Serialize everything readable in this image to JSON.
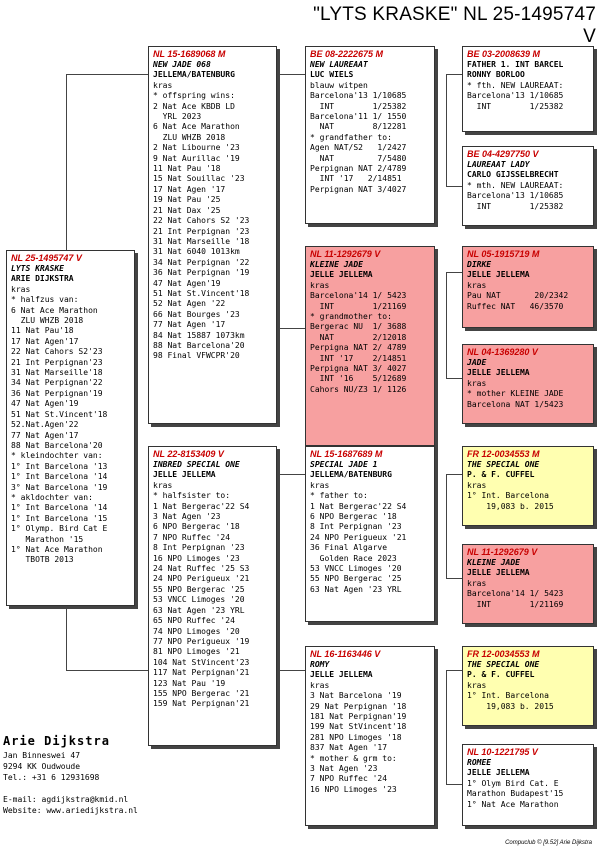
{
  "title": "\"LYTS KRASKE\"  NL  25-1495747 V",
  "owner": {
    "name": "Arie Dijkstra",
    "lines": [
      "Jan Binneswei 47",
      "9294 KK  Oudwoude",
      "Tel.: +31 6 12931698",
      "",
      "E-mail: agdijkstra@kmid.nl",
      "Website: www.ariedijkstra.nl"
    ]
  },
  "footer": "Compuclub © [9.52]  Arie Dijkstra",
  "cards": {
    "subject": {
      "header": "NL  25-1495747 V",
      "name": "LYTS KRASKE",
      "owner": "ARIE DIJKSTRA",
      "lines": [
        "kras",
        "* halfzus van:",
        "6 Nat Ace Marathon",
        "  ZLU WHZB 2018",
        "11 Nat Pau'18",
        "17 Nat Agen'17",
        "22 Nat Cahors S2'23",
        "21 Int Perpignan'23",
        "31 Nat Marseille'18",
        "34 Nat Perpignan'22",
        "36 Nat Perpignan'19",
        "47 Nat Agen'19",
        "51 Nat St.Vincent'18",
        "52.Nat.Agen'22",
        "77 Nat Agen'17",
        "88 Nat Barcelona'20",
        "* kleindochter van:",
        "1° Int Barcelona '13",
        "1° Int Barcelona '14",
        "3° Nat Barcelona '19",
        "* akldochter van:",
        "1° Int Barcelona '14",
        "1° Int Barcelona '15",
        "1° Olymp. Bird Cat E",
        "   Marathon '15",
        "1° Nat Ace Marathon",
        "   TBOTB 2013"
      ]
    },
    "father": {
      "header": "NL  15-1689068 M",
      "name": "NEW JADE 068",
      "owner": "JELLEMA/BATENBURG",
      "lines": [
        "kras",
        "* offspring wins:",
        "2 Nat Ace KBDB LD",
        "  YRL 2023",
        "6 Nat Ace Marathon",
        "  ZLU WHZB 2018",
        "2 Nat Libourne '23",
        "9 Nat Aurillac '19",
        "11 Nat Pau '18",
        "15 Nat Souillac '23",
        "17 Nat Agen '17",
        "19 Nat Pau '25",
        "21 Nat Dax '25",
        "22 Nat Cahors S2 '23",
        "21 Int Perpignan '23",
        "31 Nat Marseille '18",
        "31 Nat 6040 1013km",
        "34 Nat Perpignan '22",
        "36 Nat Perpignan '19",
        "47 Nat Agen'19",
        "51 Nat St.Vincent'18",
        "52 Nat Agen '22",
        "66 Nat Bourges '23",
        "77 Nat Agen '17",
        "84 Nat 15887 1073km",
        "88 Nat Barcelona'20",
        "98 Final VFWCPR'20"
      ]
    },
    "mother": {
      "header": "NL  22-8153409 V",
      "name": "INBRED SPECIAL ONE",
      "owner": "JELLE JELLEMA",
      "lines": [
        "kras",
        "* halfsister to:",
        "1 Nat Bergerac'22 S4",
        "3 Nat Agen '23",
        "6 NPO Bergerac '18",
        "7 NPO Ruffec '24",
        "8 Int Perpignan '23",
        "16 NPO Limoges '23",
        "24 Nat Ruffec '25 S3",
        "24 NPO Perigueux '21",
        "55 NPO Bergerac '25",
        "53 VNCC Limoges '20",
        "63 Nat Agen '23 YRL",
        "65 NPO Ruffec '24",
        "74 NPO Limoges '20",
        "77 NPO Perigueux '19",
        "81 NPO Limoges '21",
        "104 Nat StVincent'23",
        "117 Nat Perpignan'21",
        "123 Nat Pau '19",
        "155 NPO Bergerac '21",
        "159 Nat Perpignan'21"
      ]
    },
    "ff": {
      "header": "BE  08-2222675 M",
      "name": "NEW LAUREAAT",
      "owner": "LUC WIELS",
      "lines": [
        "blauw witpen",
        "Barcelona'13 1/10685",
        "  INT        1/25382",
        "Barcelona'11 1/ 1550",
        "  NAT        8/12281",
        "* grandfather to:",
        "Agen NAT/S2   1/2427",
        "  NAT         7/5480",
        "Perpignan NAT 2/4789",
        "  INT '17   2/14851",
        "Perpignan NAT 3/4027"
      ]
    },
    "fm": {
      "header": "NL  11-1292679 V",
      "name": "KLEINE JADE",
      "owner": "JELLE JELLEMA",
      "lines": [
        "kras",
        "Barcelona'14 1/ 5423",
        "  INT        1/21169",
        "* grandmother to:",
        "Bergerac NU  1/ 3688",
        "  NAT        2/12018",
        "Perpigna NAT 2/ 4789",
        "  INT '17    2/14851",
        "Perpigna NAT 3/ 4027",
        "  INT '16    5/12689",
        "Cahors NU/Z3 1/ 1126"
      ]
    },
    "mf": {
      "header": "NL  15-1687689 M",
      "name": "SPECIAL JADE 1",
      "owner": "JELLEMA/BATENBURG",
      "lines": [
        "kras",
        "* father to:",
        "1 Nat Bergerac'22 S4",
        "6 NPO Bergerac '18",
        "8 Int Perpignan '23",
        "24 NPO Perigueux '21",
        "36 Final Algarve",
        "  Golden Race 2023",
        "53 VNCC Limoges '20",
        "55 NPO Bergerac '25",
        "63 Nat Agen '23 YRL"
      ]
    },
    "mm": {
      "header": "NL  16-1163446 V",
      "name": "ROMY",
      "owner": "JELLE JELLEMA",
      "lines": [
        "kras",
        "3 Nat Barcelona '19",
        "29 Nat Perpignan '18",
        "181 Nat Perpignan'19",
        "199 Nat StVincent'18",
        "281 NPO Limoges '18",
        "837 Nat Agen '17",
        "* mother & grm to:",
        "3 Nat Agen '23",
        "7 NPO Ruffec '24",
        "16 NPO Limoges '23"
      ]
    },
    "fff": {
      "header": "BE  03-2008639 M",
      "name": "",
      "owner": "FATHER 1. INT BARCEL",
      "owner2": "RONNY BORLOO",
      "lines": [
        "* fth. NEW LAUREAAT:",
        "Barcelona'13 1/10685",
        "  INT        1/25382"
      ]
    },
    "ffm": {
      "header": "BE  04-4297750 V",
      "name": "LAUREAAT LADY",
      "owner": "CARLO GIJSSELBRECHT",
      "lines": [
        "* mth. NEW LAUREAAT:",
        "Barcelona'13 1/10685",
        "  INT        1/25382"
      ]
    },
    "fmf": {
      "header": "NL  05-1915719 M",
      "name": "DIRKE",
      "owner": "JELLE JELLEMA",
      "lines": [
        "kras",
        "Pau NAT       20/2342",
        "Ruffec NAT   46/3570"
      ]
    },
    "fmm": {
      "header": "NL  04-1369280 V",
      "name": "JADE",
      "owner": "JELLE JELLEMA",
      "lines": [
        "kras",
        "* mother KLEINE JADE",
        "Barcelona NAT 1/5423"
      ]
    },
    "mff": {
      "header": "FR  12-0034553 M",
      "name": "THE SPECIAL ONE",
      "owner": "P. & F. CUFFEL",
      "lines": [
        "kras",
        "1° Int. Barcelona",
        "    19,083 b. 2015"
      ]
    },
    "mfm": {
      "header": "NL  11-1292679 V",
      "name": "KLEINE JADE",
      "owner": "JELLE JELLEMA",
      "lines": [
        "kras",
        "Barcelona'14 1/ 5423",
        "  INT        1/21169"
      ]
    },
    "mmf": {
      "header": "FR  12-0034553 M",
      "name": "THE SPECIAL ONE",
      "owner": "P. & F. CUFFEL",
      "lines": [
        "kras",
        "1° Int. Barcelona",
        "    19,083 b. 2015"
      ]
    },
    "mmm": {
      "header": "NL  10-1221795 V",
      "name": "ROMEE",
      "owner": "JELLE JELLEMA",
      "lines": [
        "1° Olym Bird Cat. E",
        "Marathon Budapest'15",
        "1° Nat Ace Marathon"
      ]
    }
  }
}
